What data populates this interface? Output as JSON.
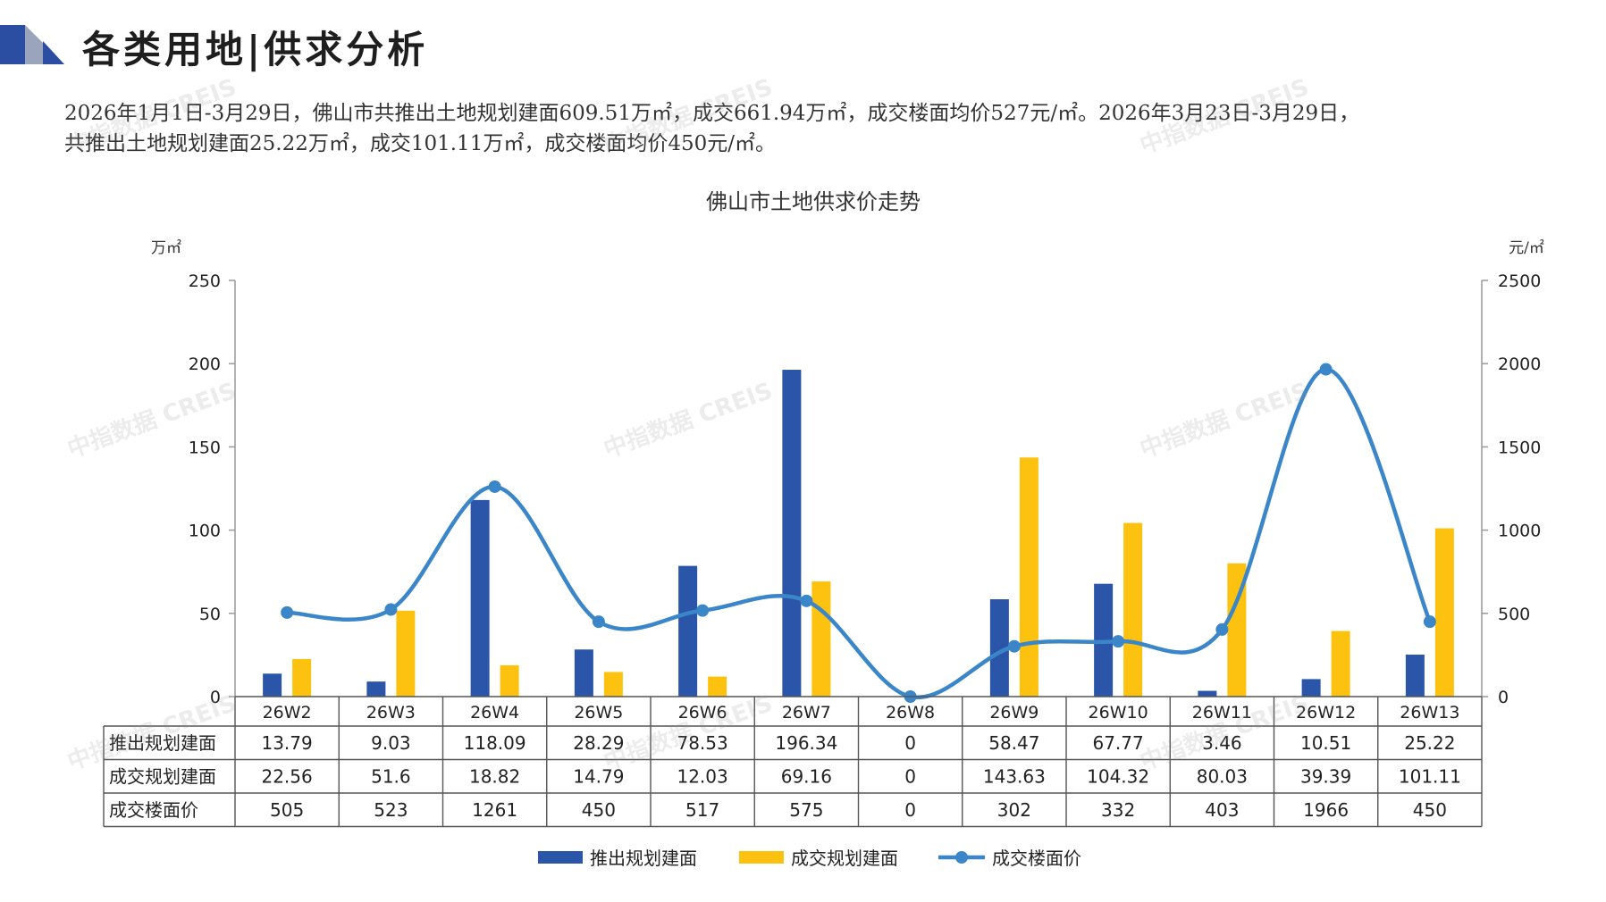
{
  "page": {
    "title": "各类用地|供求分析",
    "summary_line1": "2026年1月1日-3月29日，佛山市共推出土地规划建面609.51万㎡，成交661.94万㎡，成交楼面均价527元/㎡。2026年3月23日-3月29日，",
    "summary_line2": "共推出土地规划建面25.22万㎡，成交101.11万㎡，成交楼面均价450元/㎡。",
    "watermark_text": "中指数据 CREIS"
  },
  "colors": {
    "supply_bar": "#2a55a8",
    "deal_bar": "#fdc20f",
    "price_line": "#3a86c8",
    "axis": "#999999",
    "logo_dark": "#2b4ea3",
    "logo_light": "#9aa5bd"
  },
  "chart_data": {
    "type": "bar",
    "title": "佛山市土地供求价走势",
    "left_unit": "万㎡",
    "right_unit": "元/㎡",
    "categories": [
      "26W2",
      "26W3",
      "26W4",
      "26W5",
      "26W6",
      "26W7",
      "26W8",
      "26W9",
      "26W10",
      "26W11",
      "26W12",
      "26W13"
    ],
    "left_ylim": [
      0,
      250
    ],
    "left_ticks": [
      "0",
      "50",
      "100",
      "150",
      "200",
      "250"
    ],
    "right_ylim": [
      0,
      2500
    ],
    "right_ticks": [
      "0",
      "500",
      "1000",
      "1500",
      "2000",
      "2500"
    ],
    "series": [
      {
        "name": "推出规划建面",
        "type": "bar",
        "axis": "left",
        "values": [
          13.79,
          9.03,
          118.09,
          28.29,
          78.53,
          196.34,
          0,
          58.47,
          67.77,
          3.46,
          10.51,
          25.22
        ],
        "labels": [
          "13.79",
          "9.03",
          "118.09",
          "28.29",
          "78.53",
          "196.34",
          "0",
          "58.47",
          "67.77",
          "3.46",
          "10.51",
          "25.22"
        ]
      },
      {
        "name": "成交规划建面",
        "type": "bar",
        "axis": "left",
        "values": [
          22.56,
          51.6,
          18.82,
          14.79,
          12.03,
          69.16,
          0,
          143.63,
          104.32,
          80.03,
          39.39,
          101.11
        ],
        "labels": [
          "22.56",
          "51.6",
          "18.82",
          "14.79",
          "12.03",
          "69.16",
          "0",
          "143.63",
          "104.32",
          "80.03",
          "39.39",
          "101.11"
        ]
      },
      {
        "name": "成交楼面价",
        "type": "line",
        "axis": "right",
        "values": [
          505,
          523,
          1261,
          450,
          517,
          575,
          0,
          302,
          332,
          403,
          1966,
          450
        ],
        "labels": [
          "505",
          "523",
          "1261",
          "450",
          "517",
          "575",
          "0",
          "302",
          "332",
          "403",
          "1966",
          "450"
        ]
      }
    ],
    "table_rows": [
      "推出规划建面",
      "成交规划建面",
      "成交楼面价"
    ],
    "legend": [
      "推出规划建面",
      "成交规划建面",
      "成交楼面价"
    ],
    "legend_position": "bottom",
    "grid": false
  }
}
